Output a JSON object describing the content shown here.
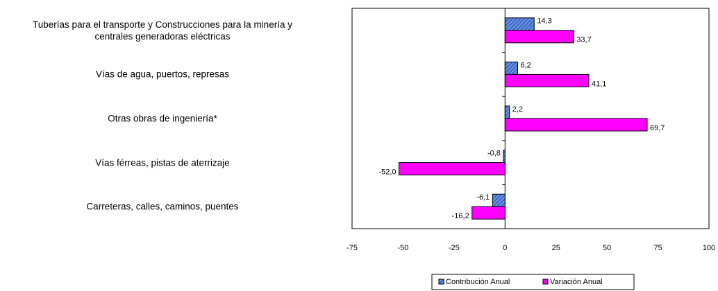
{
  "chart_data": {
    "type": "bar",
    "orientation": "horizontal",
    "categories": [
      "Tuberías para el transporte y Construcciones para la minería y\ncentrales generadoras eléctricas",
      "Vías de agua, puertos, represas",
      "Otras obras de ingeniería*",
      "Vías férreas, pistas de aterrizaje",
      "Carreteras, calles, caminos, puentes"
    ],
    "series": [
      {
        "name": "Contribución Anual",
        "color": "#6699ff",
        "hatch": true,
        "values": [
          14.3,
          6.2,
          2.2,
          -0.8,
          -6.1
        ],
        "value_labels": [
          "14,3",
          "6,2",
          "2,2",
          "-0,8",
          "-6,1"
        ]
      },
      {
        "name": "Variación Anual",
        "color": "#ff00ff",
        "hatch": false,
        "values": [
          33.7,
          41.1,
          69.7,
          -52.0,
          -16.2
        ],
        "value_labels": [
          "33,7",
          "41,1",
          "69,7",
          "-52,0",
          "-16,2"
        ]
      }
    ],
    "xlim": [
      -75,
      100
    ],
    "xticks": [
      -75,
      -50,
      -25,
      0,
      25,
      50,
      75,
      100
    ],
    "legend": "bottom"
  }
}
